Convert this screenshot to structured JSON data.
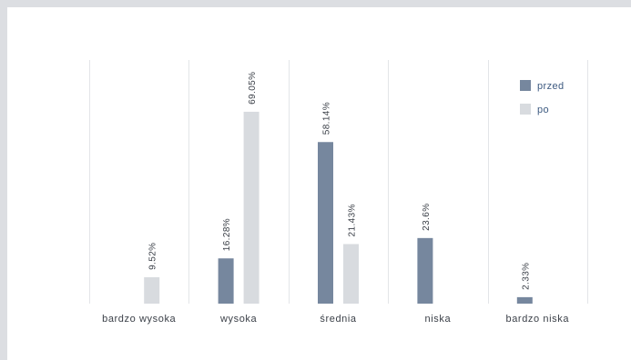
{
  "chart_data": {
    "type": "bar",
    "categories": [
      "bardzo wysoka",
      "wysoka",
      "średnia",
      "niska",
      "bardzo niska"
    ],
    "series": [
      {
        "name": "przed",
        "values": [
          null,
          16.28,
          58.14,
          23.6,
          2.33
        ],
        "labels": [
          "",
          "16.28%",
          "58.14%",
          "23.6%",
          "2.33%"
        ],
        "color": "#76879e"
      },
      {
        "name": "po",
        "values": [
          9.52,
          69.05,
          21.43,
          null,
          null
        ],
        "labels": [
          "9.52%",
          "69.05%",
          "21.43%",
          "",
          ""
        ],
        "color": "#d8dbdf"
      }
    ],
    "ylim": [
      0,
      70
    ],
    "grid": "vertical separators between categories",
    "legend": "top-right",
    "value_labels": "rotated vertical above bars"
  },
  "colors": {
    "background": "#dcdee2",
    "panel": "#ffffff",
    "gridline": "#e3e5e8",
    "axis_text": "#3a3f47",
    "legend_text": "#3d5a80"
  }
}
